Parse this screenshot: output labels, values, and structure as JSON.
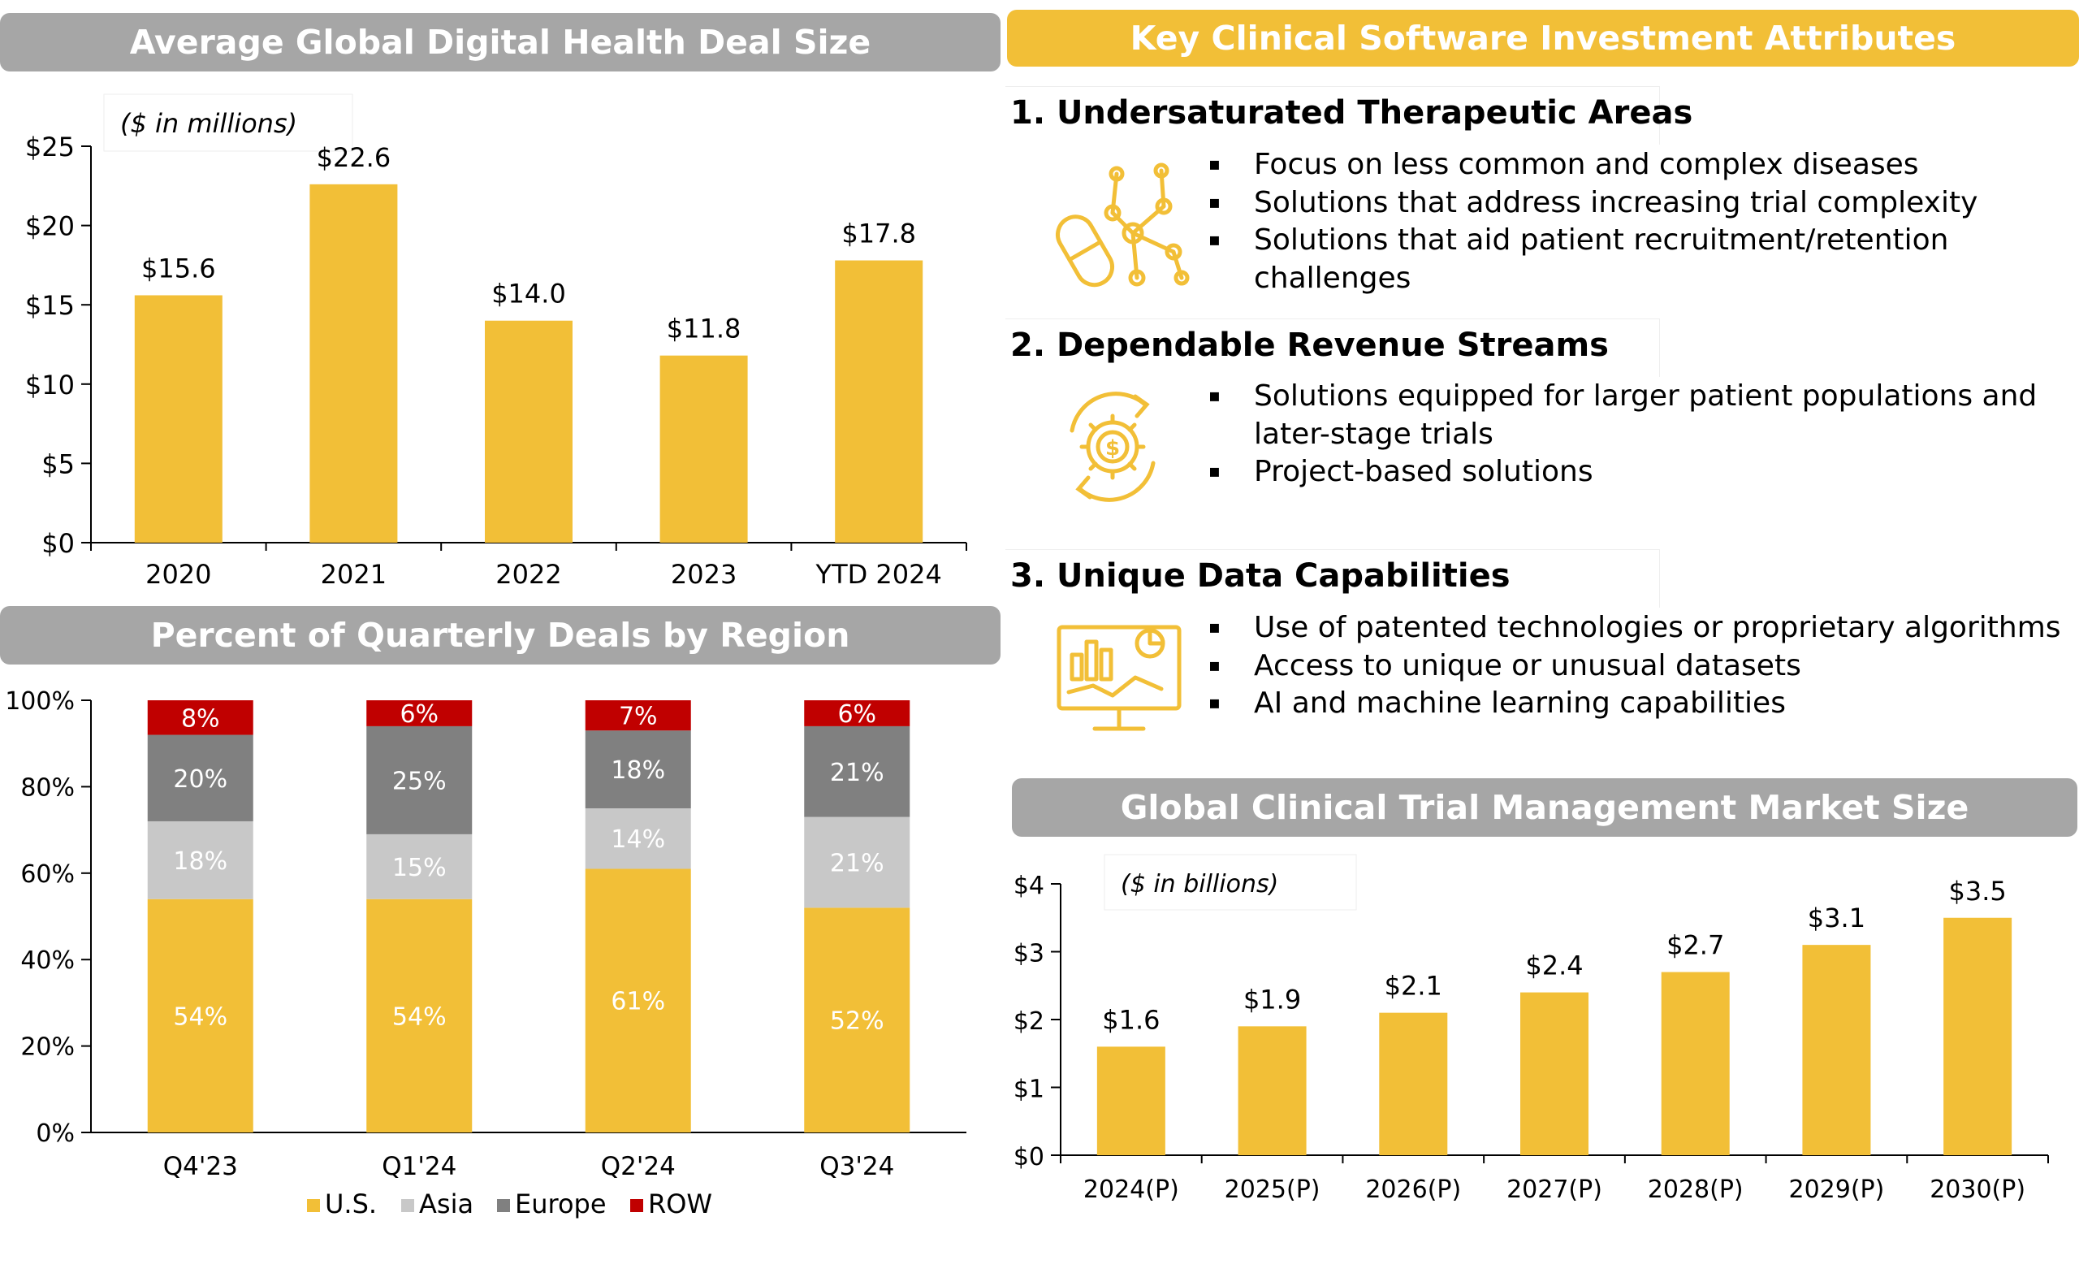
{
  "deal_size": {
    "title": "Average Global Digital Health Deal Size",
    "unit_note": "($ in millions)"
  },
  "region": {
    "title": "Percent of Quarterly Deals by Region"
  },
  "attributes": {
    "title": "Key Clinical Software Investment Attributes",
    "sections": [
      {
        "heading": "1. Undersaturated Therapeutic Areas",
        "icon": "molecule-pill-icon",
        "bullets": [
          "Focus on less common and complex diseases",
          "Solutions that address increasing trial complexity",
          "Solutions that aid patient recruitment/retention challenges"
        ]
      },
      {
        "heading": "2. Dependable Revenue Streams",
        "icon": "gear-dollar-cycle-icon",
        "bullets": [
          "Solutions equipped for larger patient populations and later-stage trials",
          "Project-based solutions"
        ]
      },
      {
        "heading": "3. Unique Data Capabilities",
        "icon": "analytics-monitor-icon",
        "bullets": [
          "Use of patented technologies or proprietary algorithms",
          "Access to unique or unusual datasets",
          "AI and machine learning capabilities"
        ]
      }
    ]
  },
  "market": {
    "title": "Global Clinical Trial Management Market Size",
    "unit_note": "($ in billions)"
  },
  "colors": {
    "gold": "#f2bf37",
    "light_gray": "#c8c8c8",
    "dark_gray": "#808080",
    "red": "#c00000",
    "banner_gray": "#a6a6a6"
  },
  "chart_data": [
    {
      "id": "deal-size",
      "type": "bar",
      "title": "Average Global Digital Health Deal Size",
      "categories": [
        "2020",
        "2021",
        "2022",
        "2023",
        "YTD 2024"
      ],
      "values": [
        15.6,
        22.6,
        14.0,
        11.8,
        17.8
      ],
      "value_labels": [
        "$15.6",
        "$22.6",
        "$14.0",
        "$11.8",
        "$17.8"
      ],
      "ylim": [
        0,
        25
      ],
      "yticks": [
        0,
        5,
        10,
        15,
        20,
        25
      ],
      "ytick_labels": [
        "$0",
        "$5",
        "$10",
        "$15",
        "$20",
        "$25"
      ],
      "ylabel": "($ in millions)"
    },
    {
      "id": "region",
      "type": "bar",
      "stacked": true,
      "title": "Percent of Quarterly Deals by Region",
      "categories": [
        "Q4'23",
        "Q1'24",
        "Q2'24",
        "Q3'24"
      ],
      "series": [
        {
          "name": "U.S.",
          "values": [
            54,
            54,
            61,
            52
          ],
          "color": "#f2bf37",
          "label_color": "#ffffff"
        },
        {
          "name": "Asia",
          "values": [
            18,
            15,
            14,
            21
          ],
          "color": "#c8c8c8",
          "label_color": "#ffffff"
        },
        {
          "name": "Europe",
          "values": [
            20,
            25,
            18,
            21
          ],
          "color": "#808080",
          "label_color": "#ffffff"
        },
        {
          "name": "ROW",
          "values": [
            8,
            6,
            7,
            6
          ],
          "color": "#c00000",
          "label_color": "#ffffff"
        }
      ],
      "ylim": [
        0,
        100
      ],
      "yticks": [
        0,
        20,
        40,
        60,
        80,
        100
      ],
      "ytick_labels": [
        "0%",
        "20%",
        "40%",
        "60%",
        "80%",
        "100%"
      ],
      "legend": "bottom"
    },
    {
      "id": "market",
      "type": "bar",
      "title": "Global Clinical Trial Management Market Size",
      "categories": [
        "2024(P)",
        "2025(P)",
        "2026(P)",
        "2027(P)",
        "2028(P)",
        "2029(P)",
        "2030(P)"
      ],
      "values": [
        1.6,
        1.9,
        2.1,
        2.4,
        2.7,
        3.1,
        3.5
      ],
      "value_labels": [
        "$1.6",
        "$1.9",
        "$2.1",
        "$2.4",
        "$2.7",
        "$3.1",
        "$3.5"
      ],
      "ylim": [
        0,
        4
      ],
      "yticks": [
        0,
        1,
        2,
        3,
        4
      ],
      "ytick_labels": [
        "$0",
        "$1",
        "$2",
        "$3",
        "$4"
      ],
      "ylabel": "($ in billions)"
    }
  ]
}
